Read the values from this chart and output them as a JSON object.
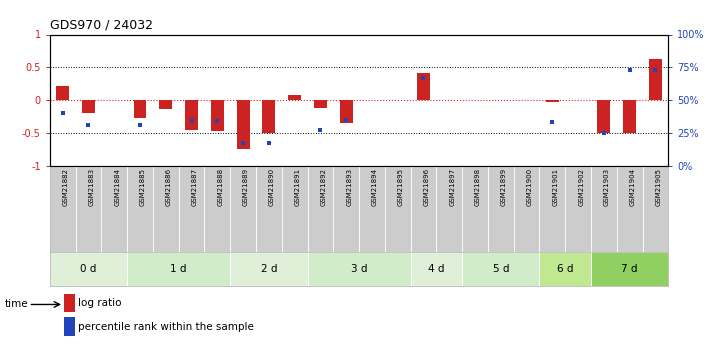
{
  "title": "GDS970 / 24032",
  "samples": [
    "GSM21882",
    "GSM21883",
    "GSM21884",
    "GSM21885",
    "GSM21886",
    "GSM21887",
    "GSM21888",
    "GSM21889",
    "GSM21890",
    "GSM21891",
    "GSM21892",
    "GSM21893",
    "GSM21894",
    "GSM21895",
    "GSM21896",
    "GSM21897",
    "GSM21898",
    "GSM21899",
    "GSM21900",
    "GSM21901",
    "GSM21902",
    "GSM21903",
    "GSM21904",
    "GSM21905"
  ],
  "log_ratio": [
    0.22,
    -0.2,
    0.0,
    -0.27,
    -0.13,
    -0.45,
    -0.47,
    -0.75,
    -0.5,
    0.07,
    -0.12,
    -0.35,
    0.0,
    0.0,
    0.42,
    0.0,
    0.0,
    0.0,
    0.0,
    -0.03,
    0.0,
    -0.5,
    -0.5,
    0.62
  ],
  "percentile_raw": [
    40,
    31,
    0,
    31,
    0,
    34,
    34,
    17,
    17,
    0,
    27,
    35,
    0,
    0,
    67,
    0,
    0,
    0,
    0,
    33,
    0,
    25,
    73,
    73
  ],
  "groups": [
    {
      "label": "0 d",
      "indices": [
        0,
        1,
        2
      ]
    },
    {
      "label": "1 d",
      "indices": [
        3,
        4,
        5,
        6
      ]
    },
    {
      "label": "2 d",
      "indices": [
        7,
        8,
        9
      ]
    },
    {
      "label": "3 d",
      "indices": [
        10,
        11,
        12,
        13
      ]
    },
    {
      "label": "4 d",
      "indices": [
        14,
        15
      ]
    },
    {
      "label": "5 d",
      "indices": [
        16,
        17,
        18
      ]
    },
    {
      "label": "6 d",
      "indices": [
        19,
        20
      ]
    },
    {
      "label": "7 d",
      "indices": [
        21,
        22,
        23
      ]
    }
  ],
  "group_colors": [
    "#e0f0d8",
    "#d0ecc8",
    "#e0f0d8",
    "#d0ecc8",
    "#e0f0d8",
    "#d0ecc8",
    "#c0e890",
    "#90d060"
  ],
  "bar_color_red": "#cc2222",
  "bar_color_blue": "#2244bb",
  "plot_bg": "#ffffff",
  "ylim_left": [
    -1,
    1
  ],
  "ylim_right": [
    0,
    100
  ],
  "yticks_left": [
    -1,
    -0.5,
    0,
    0.5,
    1
  ],
  "yticks_right": [
    0,
    25,
    50,
    75,
    100
  ],
  "ytick_labels_left": [
    "-1",
    "-0.5",
    "0",
    "0.5",
    "1"
  ],
  "ytick_labels_right": [
    "0%",
    "25%",
    "50%",
    "75%",
    "100%"
  ],
  "dotted_lines": [
    -0.5,
    0.5
  ],
  "zero_line": 0,
  "bar_width": 0.5,
  "sample_box_color": "#cccccc",
  "sample_box_border": "#aaaaaa"
}
